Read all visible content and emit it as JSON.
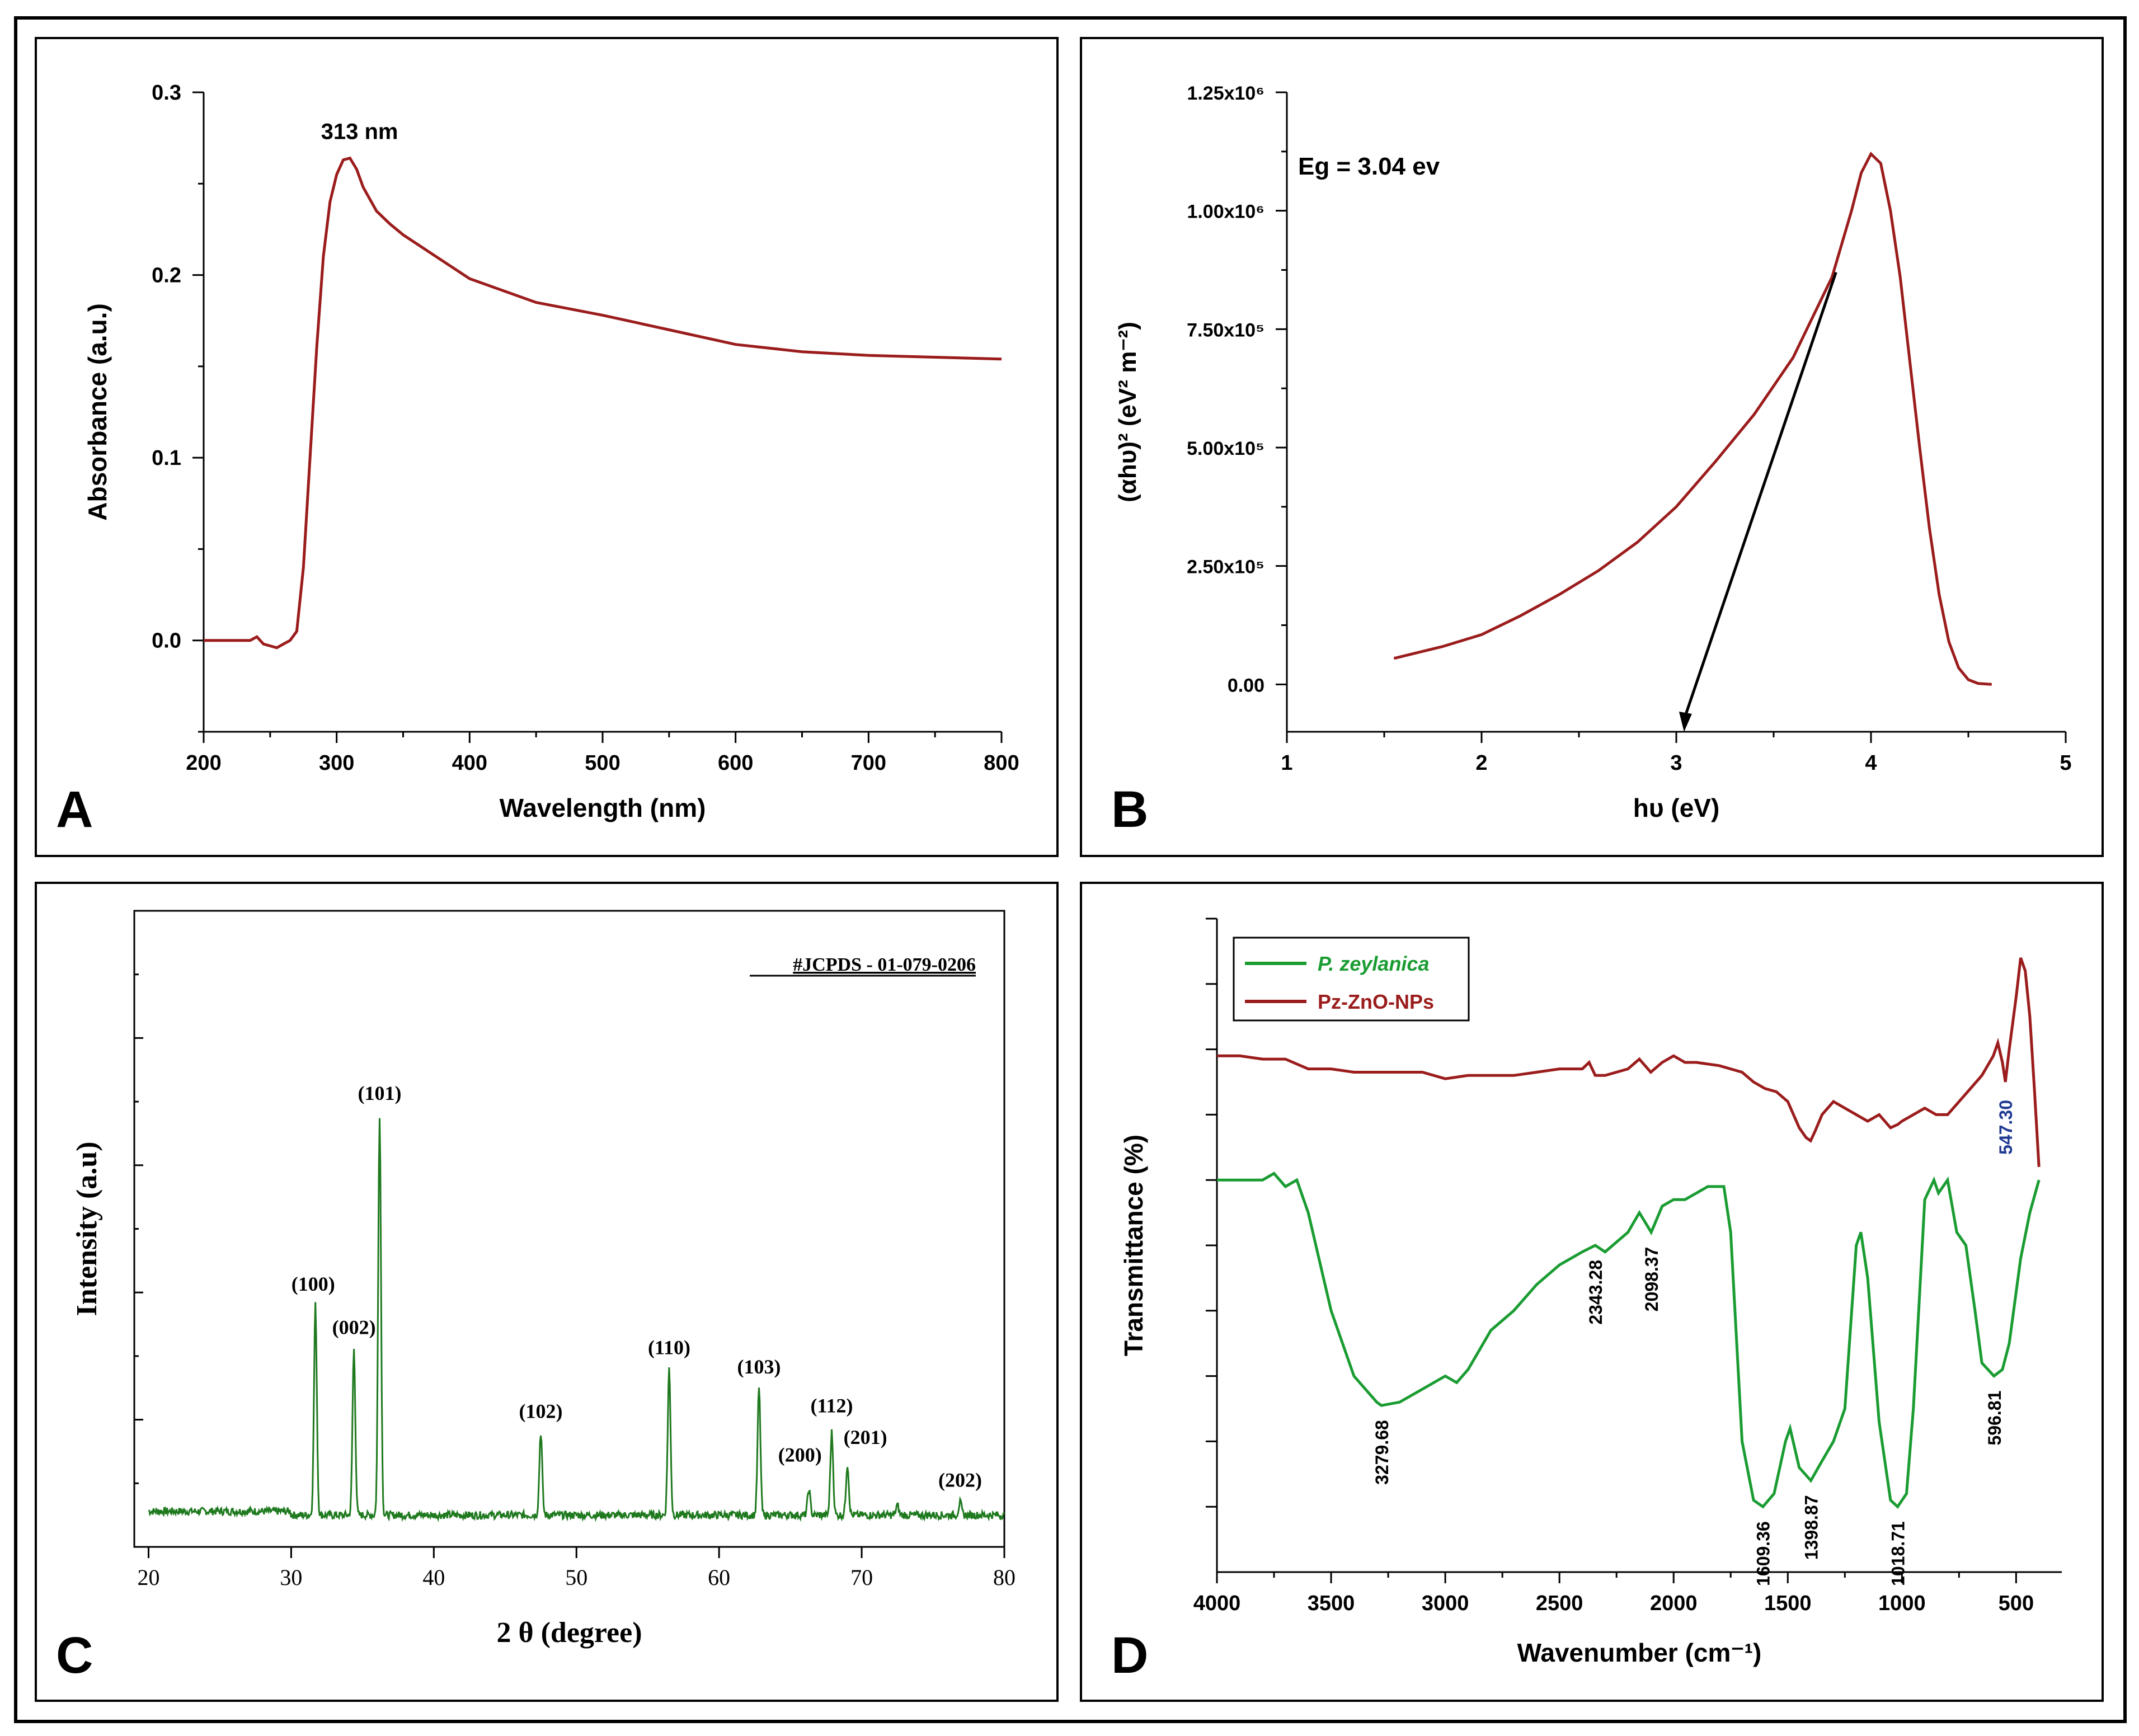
{
  "colors": {
    "red": "#9b1c1c",
    "green": "#1f7a1f",
    "ftir_green": "#1a9c32",
    "blue_label": "#1f3a93",
    "axis": "#000000"
  },
  "chart_data": [
    {
      "panel": "A",
      "type": "line",
      "xlabel": "Wavelength (nm)",
      "ylabel": "Absorbance (a.u.)",
      "xlim": [
        200,
        800
      ],
      "ylim": [
        -0.05,
        0.3
      ],
      "xticks": [
        "200",
        "300",
        "400",
        "500",
        "600",
        "700",
        "800"
      ],
      "yticks": [
        "0.0",
        "0.1",
        "0.2",
        "0.3"
      ],
      "xtick_values": [
        200,
        300,
        400,
        500,
        600,
        700,
        800
      ],
      "ytick_values": [
        0.0,
        0.1,
        0.2,
        0.3
      ],
      "annotation": "313 nm",
      "series": [
        {
          "name": "absorbance",
          "color": "#9b1c1c",
          "x": [
            200,
            235,
            240,
            245,
            250,
            255,
            260,
            265,
            270,
            275,
            280,
            285,
            290,
            295,
            300,
            305,
            310,
            315,
            320,
            330,
            340,
            350,
            375,
            400,
            450,
            500,
            550,
            600,
            650,
            700,
            750,
            800
          ],
          "y": [
            0.0,
            0.0,
            0.002,
            -0.002,
            -0.003,
            -0.004,
            -0.002,
            0.0,
            0.005,
            0.04,
            0.1,
            0.16,
            0.21,
            0.24,
            0.255,
            0.263,
            0.264,
            0.258,
            0.248,
            0.235,
            0.228,
            0.222,
            0.21,
            0.198,
            0.185,
            0.178,
            0.17,
            0.162,
            0.158,
            0.156,
            0.155,
            0.154
          ]
        }
      ]
    },
    {
      "panel": "B",
      "type": "line",
      "xlabel": "hυ (eV)",
      "ylabel": "(αhυ)² (eV² m⁻²)",
      "xlim": [
        1,
        5
      ],
      "ylim": [
        -100000,
        1250000
      ],
      "xticks": [
        "1",
        "2",
        "3",
        "4",
        "5"
      ],
      "xtick_values": [
        1,
        2,
        3,
        4,
        5
      ],
      "yticks": [
        "0.00",
        "2.50x10⁵",
        "5.00x10⁵",
        "7.50x10⁵",
        "1.00x10⁶",
        "1.25x10⁶"
      ],
      "ytick_values": [
        0,
        250000,
        500000,
        750000,
        1000000,
        1250000
      ],
      "annotation": "Eg = 3.04 ev",
      "tangent": {
        "x": [
          3.82,
          3.04
        ],
        "y": [
          870000,
          -100000
        ]
      },
      "series": [
        {
          "name": "tauc",
          "color": "#9b1c1c",
          "x": [
            1.55,
            1.8,
            2.0,
            2.2,
            2.4,
            2.6,
            2.8,
            3.0,
            3.2,
            3.4,
            3.6,
            3.8,
            3.9,
            3.95,
            4.0,
            4.05,
            4.1,
            4.15,
            4.2,
            4.25,
            4.3,
            4.35,
            4.4,
            4.45,
            4.5,
            4.55,
            4.62
          ],
          "y": [
            55000,
            80000,
            105000,
            145000,
            190000,
            240000,
            300000,
            375000,
            470000,
            570000,
            690000,
            860000,
            1000000,
            1080000,
            1120000,
            1100000,
            1000000,
            860000,
            680000,
            500000,
            330000,
            190000,
            90000,
            35000,
            10000,
            2000,
            0
          ]
        }
      ]
    },
    {
      "panel": "C",
      "type": "line",
      "xlabel": "2 θ (degree)",
      "ylabel": "Intensity (a.u)",
      "xlim": [
        19,
        80
      ],
      "ylim": [
        0,
        100
      ],
      "xticks": [
        "20",
        "30",
        "40",
        "50",
        "60",
        "70",
        "80"
      ],
      "xtick_values": [
        20,
        30,
        40,
        50,
        60,
        70,
        80
      ],
      "annotation": "#JCPDS - 01-079-0206",
      "baseline": 5,
      "peaks": [
        {
          "x": 31.7,
          "y": 38,
          "label": "(100)"
        },
        {
          "x": 34.4,
          "y": 31,
          "label": "(002)"
        },
        {
          "x": 36.2,
          "y": 68,
          "label": "(101)"
        },
        {
          "x": 47.5,
          "y": 18,
          "label": "(102)"
        },
        {
          "x": 56.5,
          "y": 28,
          "label": "(110)"
        },
        {
          "x": 62.8,
          "y": 25,
          "label": "(103)"
        },
        {
          "x": 66.3,
          "y": 9,
          "label": "(200)"
        },
        {
          "x": 67.9,
          "y": 18,
          "label": "(112)"
        },
        {
          "x": 69.0,
          "y": 13,
          "label": "(201)"
        },
        {
          "x": 72.5,
          "y": 6.5,
          "label": ""
        },
        {
          "x": 76.9,
          "y": 7,
          "label": "(202)"
        }
      ],
      "series": [
        {
          "name": "P. zeylanica ZnO XRD",
          "color": "#1f7a1f"
        }
      ]
    },
    {
      "panel": "D",
      "type": "line",
      "xlabel": "Wavenumber (cm⁻¹)",
      "ylabel": "Transmittance (%)",
      "xlim": [
        4000,
        300
      ],
      "ylim": [
        0,
        100
      ],
      "xticks": [
        "4000",
        "3500",
        "3000",
        "2500",
        "2000",
        "1500",
        "1000",
        "500"
      ],
      "xtick_values": [
        4000,
        3500,
        3000,
        2500,
        2000,
        1500,
        1000,
        500
      ],
      "legend": [
        "P. zeylanica",
        "Pz-ZnO-NPs"
      ],
      "series": [
        {
          "name": "P. zeylanica",
          "color": "#1a9c32",
          "x": [
            4000,
            3800,
            3750,
            3700,
            3650,
            3600,
            3500,
            3400,
            3300,
            3280,
            3200,
            3100,
            3000,
            2950,
            2900,
            2800,
            2700,
            2600,
            2500,
            2400,
            2343,
            2300,
            2200,
            2150,
            2098,
            2050,
            2000,
            1950,
            1900,
            1850,
            1780,
            1750,
            1700,
            1650,
            1609,
            1560,
            1510,
            1490,
            1450,
            1399,
            1350,
            1300,
            1250,
            1200,
            1180,
            1150,
            1100,
            1050,
            1019,
            980,
            950,
            900,
            860,
            840,
            800,
            760,
            720,
            680,
            650,
            597,
            560,
            530,
            480,
            440,
            400
          ],
          "y": [
            60,
            60,
            61,
            59,
            60,
            55,
            40,
            30,
            26,
            25.5,
            26,
            28,
            30,
            29,
            31,
            37,
            40,
            44,
            47,
            49,
            50,
            49,
            52,
            55,
            52,
            56,
            57,
            57,
            58,
            59,
            59,
            52,
            20,
            11,
            10,
            12,
            20,
            22,
            16,
            14,
            17,
            20,
            25,
            50,
            52,
            45,
            23,
            11,
            10,
            12,
            25,
            57,
            60,
            58,
            60,
            52,
            50,
            40,
            32,
            30,
            31,
            35,
            48,
            55,
            60
          ]
        },
        {
          "name": "Pz-ZnO-NPs",
          "color": "#9b1c1c",
          "x": [
            4000,
            3900,
            3800,
            3700,
            3600,
            3500,
            3400,
            3300,
            3200,
            3100,
            3000,
            2900,
            2800,
            2700,
            2600,
            2500,
            2400,
            2370,
            2343,
            2300,
            2200,
            2150,
            2100,
            2050,
            2000,
            1950,
            1900,
            1800,
            1700,
            1650,
            1600,
            1550,
            1500,
            1450,
            1420,
            1400,
            1380,
            1350,
            1300,
            1250,
            1200,
            1150,
            1100,
            1050,
            1018,
            1000,
            950,
            900,
            850,
            800,
            750,
            700,
            650,
            600,
            580,
            560,
            547,
            530,
            500,
            480,
            460,
            440,
            420,
            400
          ],
          "y": [
            79,
            79,
            78.5,
            78.5,
            77,
            77,
            76.5,
            76.5,
            76.5,
            76.5,
            75.5,
            76,
            76,
            76,
            76.5,
            77,
            77,
            78,
            76,
            76,
            77,
            78.5,
            76.5,
            78,
            79,
            78,
            78,
            77.5,
            76.5,
            75,
            74,
            73.5,
            72,
            68,
            66.5,
            66,
            67.5,
            70,
            72,
            71,
            70,
            69,
            70,
            68,
            68.5,
            69,
            70,
            71,
            70,
            70,
            72,
            74,
            76,
            79,
            81,
            78,
            75,
            80,
            88,
            94,
            92,
            85,
            74,
            62
          ]
        }
      ],
      "labels": [
        {
          "x": 3279.68,
          "y": 25.5,
          "text": "3279.68",
          "series": "P. zeylanica"
        },
        {
          "x": 2343.28,
          "y": 50,
          "text": "2343.28",
          "series": "P. zeylanica"
        },
        {
          "x": 2098.37,
          "y": 52,
          "text": "2098.37",
          "series": "P. zeylanica"
        },
        {
          "x": 1609.36,
          "y": 10,
          "text": "1609.36",
          "series": "P. zeylanica"
        },
        {
          "x": 1398.87,
          "y": 14,
          "text": "1398.87",
          "series": "P. zeylanica"
        },
        {
          "x": 1018.71,
          "y": 10,
          "text": "1018.71",
          "series": "P. zeylanica"
        },
        {
          "x": 596.81,
          "y": 30,
          "text": "596.81",
          "series": "P. zeylanica"
        },
        {
          "x": 547.3,
          "y": 75,
          "text": "547.30",
          "series": "Pz-ZnO-NPs"
        }
      ]
    }
  ],
  "panel_letters": [
    "A",
    "B",
    "C",
    "D"
  ]
}
